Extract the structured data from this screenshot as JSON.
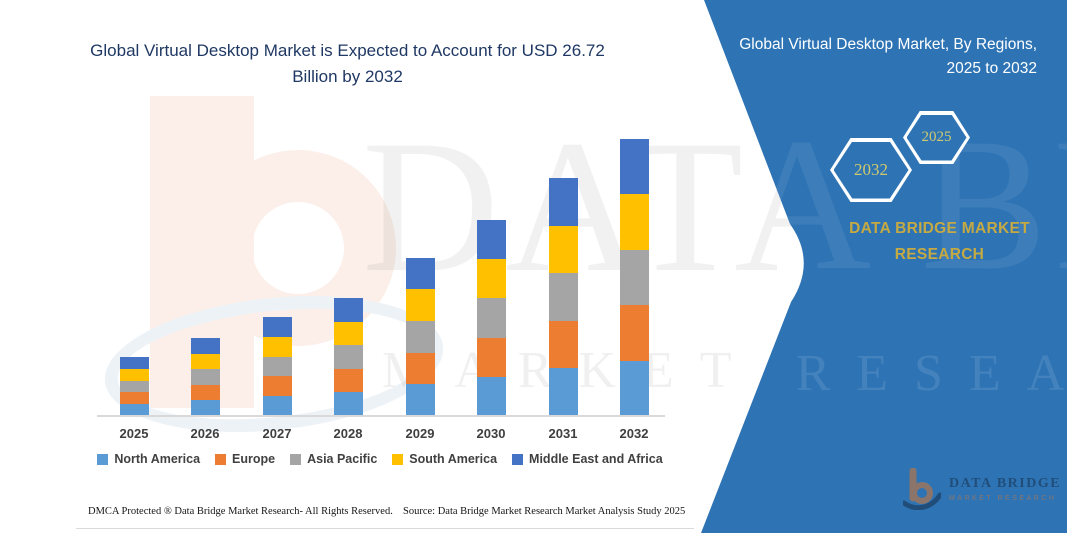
{
  "main": {
    "title": "Global Virtual Desktop Market is Expected to Account for USD 26.72 Billion by 2032"
  },
  "chart_data": {
    "type": "bar",
    "stacked": true,
    "title": "Global Virtual Desktop Market is Expected to Account for USD 26.72 Billion by 2032",
    "unit": "USD Billion",
    "categories": [
      "2025",
      "2026",
      "2027",
      "2028",
      "2029",
      "2030",
      "2031",
      "2032"
    ],
    "totals": [
      5.7,
      7.52,
      9.55,
      11.38,
      15.25,
      18.9,
      22.95,
      26.72
    ],
    "series": [
      {
        "name": "North America",
        "color": "#5B9BD5",
        "values": [
          1.14,
          1.504,
          1.91,
          2.276,
          3.05,
          3.78,
          4.59,
          5.344
        ]
      },
      {
        "name": "Europe",
        "color": "#ED7D31",
        "values": [
          1.14,
          1.504,
          1.91,
          2.276,
          3.05,
          3.78,
          4.59,
          5.344
        ]
      },
      {
        "name": "Asia Pacific",
        "color": "#A5A5A5",
        "values": [
          1.14,
          1.504,
          1.91,
          2.276,
          3.05,
          3.78,
          4.59,
          5.344
        ]
      },
      {
        "name": "South America",
        "color": "#FFC000",
        "values": [
          1.14,
          1.504,
          1.91,
          2.276,
          3.05,
          3.78,
          4.59,
          5.344
        ]
      },
      {
        "name": "Middle East and Africa",
        "color": "#4472C4",
        "values": [
          1.14,
          1.504,
          1.91,
          2.276,
          3.05,
          3.78,
          4.59,
          5.344
        ]
      }
    ],
    "xlabel": "",
    "ylabel": "",
    "ylim": [
      0,
      27
    ],
    "gridlines": false,
    "legend_position": "bottom",
    "annotation": "USD 26.72 Billion by 2032"
  },
  "panel": {
    "title": "Global Virtual Desktop Market, By Regions, 2025 to 2032",
    "hex_right_year": "2025",
    "hex_left_year": "2032",
    "brand": "DATA BRIDGE MARKET RESEARCH",
    "colors": {
      "panel_blue": "#2E74B5",
      "gold": "#C5A943",
      "hex_year": "#CFC96E"
    }
  },
  "watermark": {
    "line1": "DATA BRIDGE",
    "line2": "MARKET RESEARCH"
  },
  "logo": {
    "brand": "DATA BRIDGE",
    "tagline": "MARKET RESEARCH",
    "icon": "data-bridge-b-icon"
  },
  "footer": {
    "dmca": "DMCA Protected ® Data Bridge Market Research-  All Rights Reserved.",
    "source": "Source: Data Bridge Market Research  Market Analysis Study 2025"
  }
}
